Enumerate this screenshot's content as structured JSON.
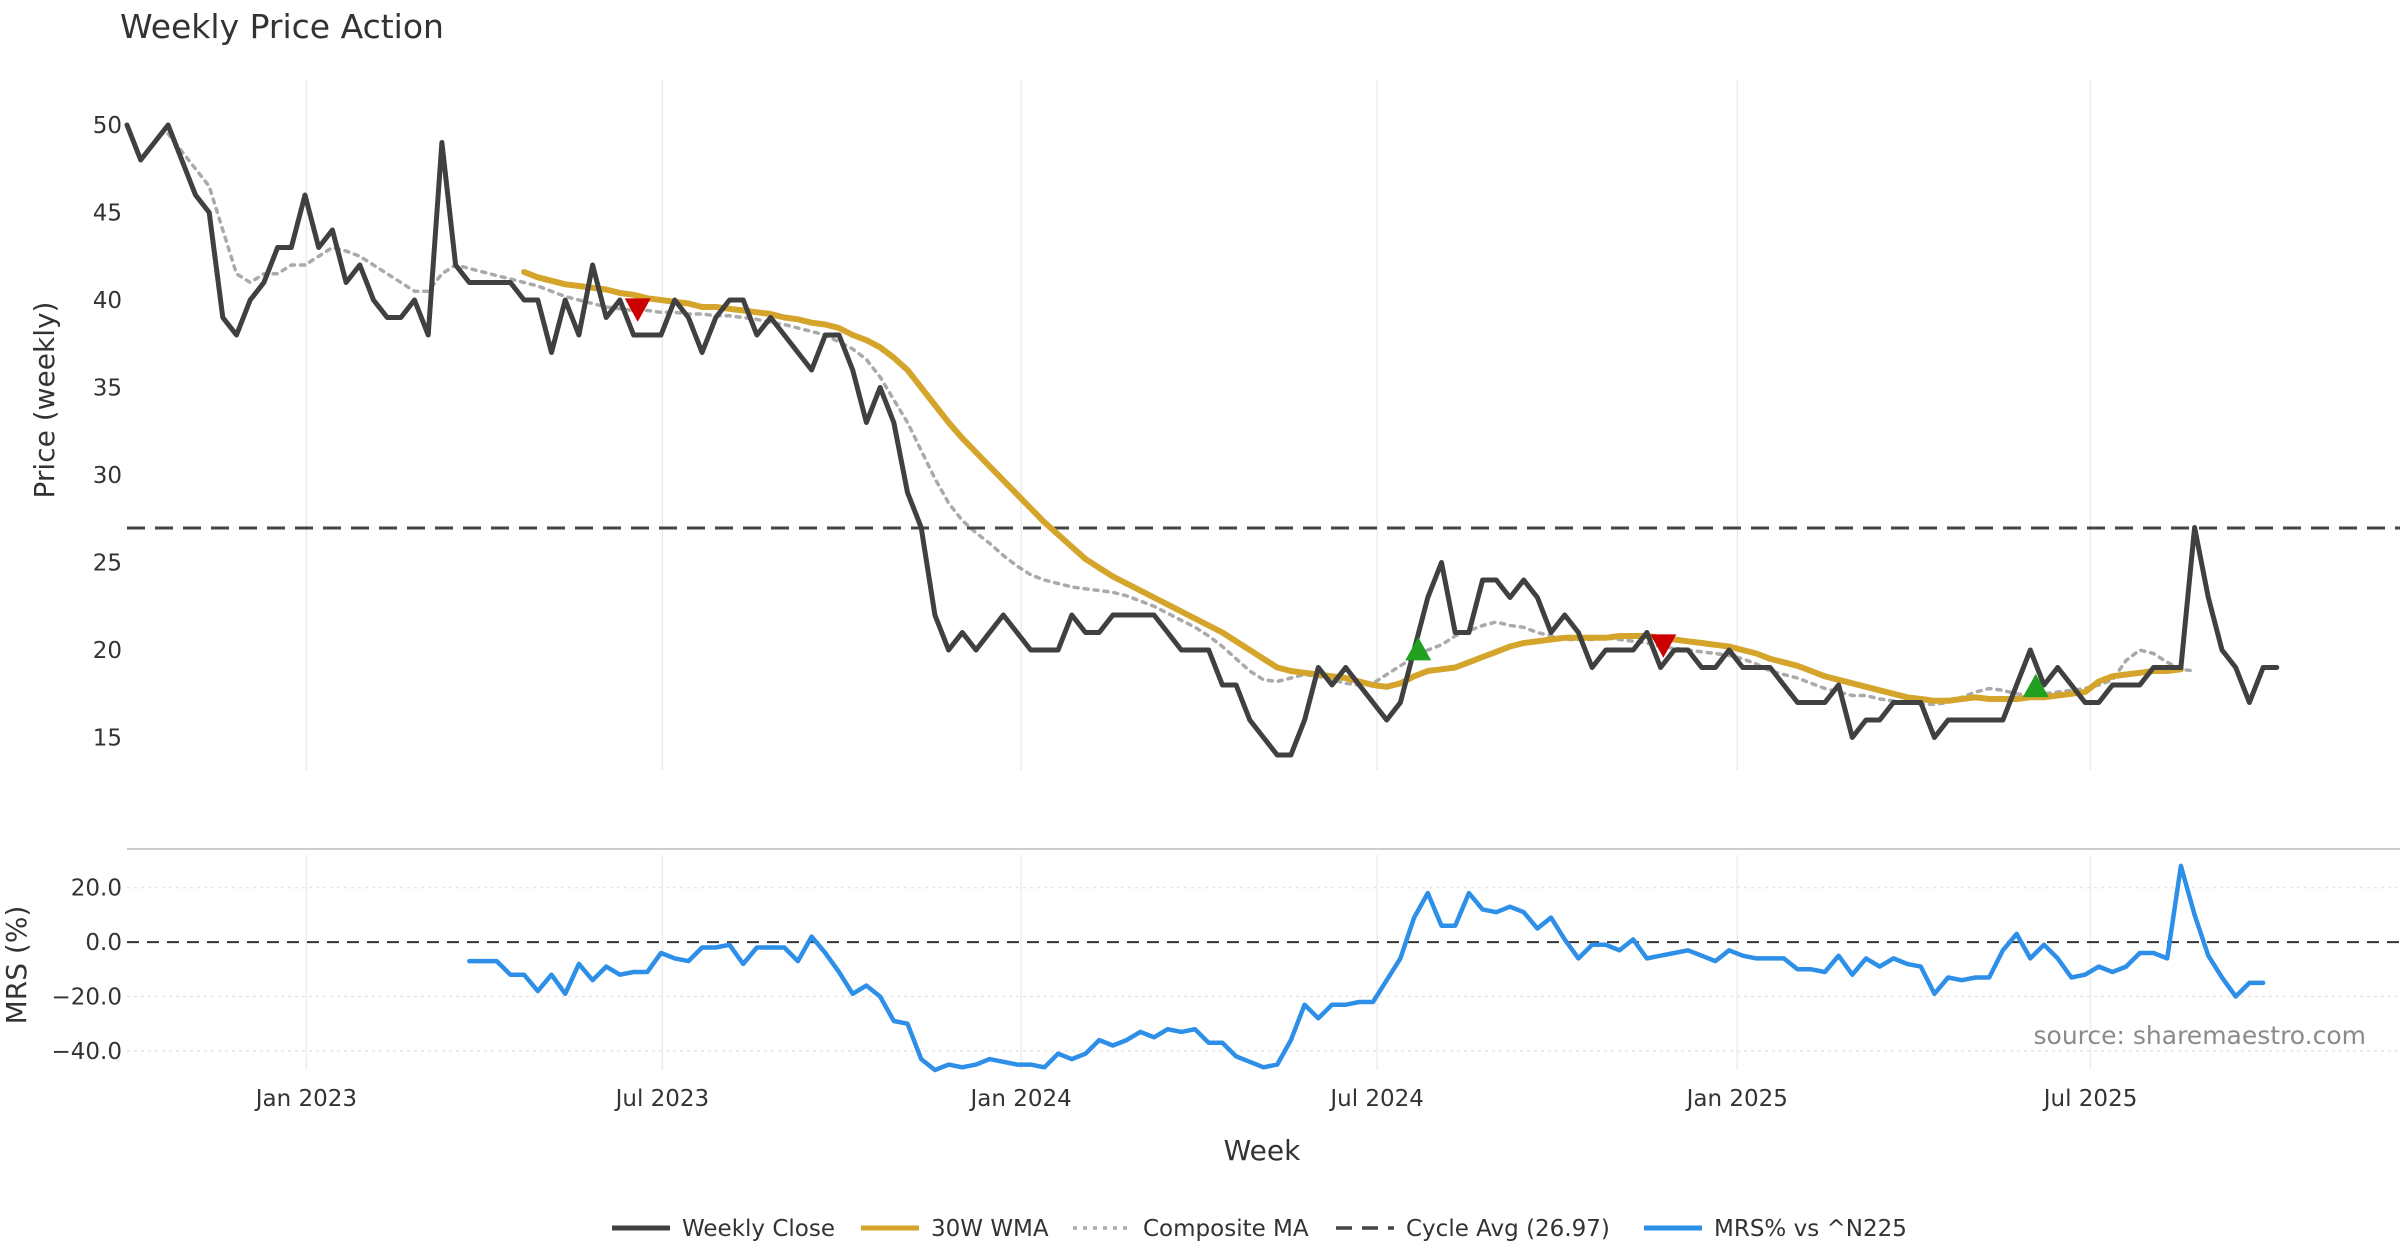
{
  "chart_data": [
    {
      "type": "line",
      "title": "Weekly Price Action",
      "ylabel": "Price (weekly)",
      "xlabel": "",
      "x_unit": "weeks since 2022-09-30",
      "xlim": [
        0,
        166
      ],
      "ylim": [
        12.0,
        52.0
      ],
      "yticks": [
        15,
        20,
        25,
        30,
        35,
        40,
        45,
        50
      ],
      "xticks": [
        {
          "x": 13.1,
          "label": "Jan 2023"
        },
        {
          "x": 39.1,
          "label": "Jul 2023"
        },
        {
          "x": 65.3,
          "label": "Jan 2024"
        },
        {
          "x": 91.3,
          "label": "Jul 2024"
        },
        {
          "x": 117.6,
          "label": "Jan 2025"
        },
        {
          "x": 143.4,
          "label": "Jul 2025"
        }
      ],
      "series": [
        {
          "name": "Weekly Close",
          "color": "#404040",
          "style": "solid",
          "start": 0,
          "values": [
            50,
            48,
            49,
            50,
            48,
            46,
            45,
            39,
            38,
            40,
            41,
            43,
            43,
            46,
            43,
            44,
            41,
            42,
            40,
            39,
            39,
            40,
            38,
            49,
            42,
            41,
            41,
            41,
            41,
            40,
            40,
            37,
            40,
            38,
            42,
            39,
            40,
            38,
            38,
            38,
            40,
            39,
            37,
            39,
            40,
            40,
            38,
            39,
            38,
            37,
            36,
            38,
            38,
            36,
            33,
            35,
            33,
            29,
            27,
            22,
            20,
            21,
            20,
            21,
            22,
            21,
            20,
            20,
            20,
            22,
            21,
            21,
            22,
            22,
            22,
            22,
            21,
            20,
            20,
            20,
            18,
            18,
            16,
            15,
            14,
            14,
            16,
            19,
            18,
            19,
            18,
            17,
            16,
            17,
            20,
            23,
            25,
            21,
            21,
            24,
            24,
            23,
            24,
            23,
            21,
            22,
            21,
            19,
            20,
            20,
            20,
            21,
            19,
            20,
            20,
            19,
            19,
            20,
            19,
            19,
            19,
            18,
            17,
            17,
            17,
            18,
            15,
            16,
            16,
            17,
            17,
            17,
            15,
            16,
            16,
            16,
            16,
            16,
            18,
            20,
            18,
            19,
            18,
            17,
            17,
            18,
            18,
            18,
            19,
            19,
            19,
            27,
            23,
            20,
            19,
            17,
            19,
            19
          ]
        },
        {
          "name": "30W WMA",
          "color": "#D4A42B",
          "style": "solid",
          "start": 29,
          "values": [
            41.6,
            41.3,
            41.1,
            40.9,
            40.8,
            40.7,
            40.6,
            40.4,
            40.3,
            40.1,
            40.0,
            39.9,
            39.8,
            39.6,
            39.6,
            39.5,
            39.4,
            39.3,
            39.2,
            39.0,
            38.9,
            38.7,
            38.6,
            38.4,
            38.0,
            37.7,
            37.3,
            36.7,
            36.0,
            35.0,
            34.0,
            33.0,
            32.1,
            31.3,
            30.5,
            29.7,
            28.9,
            28.1,
            27.3,
            26.6,
            25.9,
            25.2,
            24.7,
            24.2,
            23.8,
            23.4,
            23.0,
            22.6,
            22.2,
            21.8,
            21.4,
            21.0,
            20.5,
            20.0,
            19.5,
            19.0,
            18.8,
            18.7,
            18.6,
            18.5,
            18.4,
            18.2,
            18.0,
            17.9,
            18.1,
            18.5,
            18.8,
            18.9,
            19.0,
            19.3,
            19.6,
            19.9,
            20.2,
            20.4,
            20.5,
            20.6,
            20.7,
            20.7,
            20.7,
            20.7,
            20.8,
            20.8,
            20.8,
            20.7,
            20.6,
            20.5,
            20.4,
            20.3,
            20.2,
            20.0,
            19.8,
            19.5,
            19.3,
            19.1,
            18.8,
            18.5,
            18.3,
            18.1,
            17.9,
            17.7,
            17.5,
            17.3,
            17.2,
            17.1,
            17.1,
            17.2,
            17.3,
            17.2,
            17.2,
            17.2,
            17.3,
            17.3,
            17.4,
            17.5,
            17.6,
            18.2,
            18.5,
            18.6,
            18.7,
            18.8,
            18.8,
            18.9
          ]
        },
        {
          "name": "Composite MA",
          "color": "#AAAAAA",
          "style": "dotted",
          "start": 3,
          "values": [
            49.5,
            48.5,
            47.5,
            46.5,
            44.0,
            41.5,
            41.0,
            41.5,
            41.5,
            42.0,
            42.0,
            42.5,
            43.0,
            42.8,
            42.5,
            42.0,
            41.5,
            41.0,
            40.5,
            40.5,
            41.5,
            42.0,
            41.8,
            41.6,
            41.4,
            41.2,
            41.0,
            40.8,
            40.5,
            40.2,
            40.0,
            39.8,
            39.6,
            39.5,
            39.4,
            39.4,
            39.3,
            39.3,
            39.2,
            39.2,
            39.1,
            39.1,
            39.0,
            38.9,
            38.7,
            38.6,
            38.4,
            38.2,
            38.0,
            37.6,
            37.2,
            36.6,
            35.6,
            34.3,
            33.0,
            31.4,
            29.8,
            28.4,
            27.4,
            26.7,
            26.1,
            25.4,
            24.8,
            24.3,
            24.0,
            23.8,
            23.6,
            23.5,
            23.4,
            23.3,
            23.1,
            22.8,
            22.5,
            22.1,
            21.7,
            21.3,
            20.8,
            20.2,
            19.5,
            18.8,
            18.3,
            18.2,
            18.4,
            18.6,
            18.5,
            18.3,
            18.1,
            18.0,
            18.1,
            18.6,
            19.1,
            19.6,
            20.0,
            20.3,
            20.8,
            21.1,
            21.4,
            21.6,
            21.4,
            21.3,
            21.0,
            20.8,
            20.6,
            20.6,
            20.6,
            20.7,
            20.6,
            20.5,
            20.4,
            20.2,
            20.1,
            20.0,
            19.9,
            19.8,
            19.7,
            19.5,
            19.2,
            18.8,
            18.6,
            18.4,
            18.1,
            17.8,
            17.6,
            17.4,
            17.4,
            17.2,
            17.1,
            17.0,
            16.9,
            16.9,
            17.0,
            17.3,
            17.6,
            17.8,
            17.7,
            17.5,
            17.4,
            17.5,
            17.6,
            17.7,
            17.8,
            18.0,
            18.3,
            19.4,
            20.0,
            19.8,
            19.3,
            18.9,
            18.8
          ]
        },
        {
          "name": "Cycle Avg (26.97)",
          "color": "#444444",
          "style": "dashed",
          "y": 26.97
        }
      ],
      "markers": [
        {
          "type": "sell",
          "x": 37.3,
          "y": 39.5,
          "color": "#CC0000"
        },
        {
          "type": "buy",
          "x": 94.3,
          "y": 20.0,
          "color": "#22A022"
        },
        {
          "type": "sell",
          "x": 112.2,
          "y": 20.3,
          "color": "#CC0000"
        },
        {
          "type": "buy",
          "x": 139.4,
          "y": 17.9,
          "color": "#22A022"
        }
      ]
    },
    {
      "type": "line",
      "title": "",
      "ylabel": "MRS (%)",
      "xlabel": "Week",
      "xlim": [
        0,
        166
      ],
      "ylim": [
        -47,
        32
      ],
      "yticks": [
        20.0,
        0.0,
        -20.0,
        -40.0
      ],
      "ytick_labels": [
        "20.0",
        "0.0",
        "−20.0",
        "−40.0"
      ],
      "series": [
        {
          "name": "MRS% vs ^N225",
          "color": "#2E8FE8",
          "style": "solid",
          "start": 25,
          "values": [
            -7.0,
            -7.0,
            -7.0,
            -12.0,
            -12.0,
            -18.0,
            -12.0,
            -19.0,
            -8.0,
            -14.0,
            -9.0,
            -12.0,
            -11.0,
            -11.0,
            -4.0,
            -6.0,
            -7.0,
            -2.0,
            -2.0,
            -1.0,
            -8.0,
            -2.0,
            -2.0,
            -2.0,
            -7.0,
            2.0,
            -4.0,
            -11.0,
            -19.0,
            -16.0,
            -20.0,
            -29.0,
            -30.0,
            -43.0,
            -47.0,
            -45.0,
            -46.0,
            -45.0,
            -43.0,
            -44.0,
            -45.0,
            -45.0,
            -46.0,
            -41.0,
            -43.0,
            -41.0,
            -36.0,
            -38.0,
            -36.0,
            -33.0,
            -35.0,
            -32.0,
            -33.0,
            -32.0,
            -37.0,
            -37.0,
            -42.0,
            -44.0,
            -46.0,
            -45.0,
            -36.0,
            -23.0,
            -28.0,
            -23.0,
            -23.0,
            -22.0,
            -22.0,
            -14.0,
            -6.0,
            9.0,
            18.0,
            6.0,
            6.0,
            18.0,
            12.0,
            11.0,
            13.0,
            11.0,
            5.0,
            9.0,
            1.0,
            -6.0,
            -1.0,
            -1.0,
            -3.0,
            1.0,
            -6.0,
            -5.0,
            -4.0,
            -3.0,
            -5.0,
            -7.0,
            -3.0,
            -5.0,
            -6.0,
            -6.0,
            -6.0,
            -10.0,
            -10.0,
            -11.0,
            -5.0,
            -12.0,
            -6.0,
            -9.0,
            -6.0,
            -8.0,
            -9.0,
            -19.0,
            -13.0,
            -14.0,
            -13.0,
            -13.0,
            -3.0,
            3.0,
            -6.0,
            -1.0,
            -6.0,
            -13.0,
            -12.0,
            -9.0,
            -11.0,
            -9.0,
            -4.0,
            -4.0,
            -6.0,
            28.0,
            10.0,
            -5.0,
            -13.0,
            -20.0,
            -15.0,
            -15.0
          ]
        },
        {
          "name": "zero",
          "color": "#333333",
          "style": "dashed",
          "y": 0
        }
      ]
    }
  ],
  "legend": [
    {
      "label": "Weekly Close",
      "color": "#404040",
      "style": "solid"
    },
    {
      "label": "30W WMA",
      "color": "#D4A42B",
      "style": "solid"
    },
    {
      "label": "Composite MA",
      "color": "#AAAAAA",
      "style": "dotted"
    },
    {
      "label": "Cycle Avg (26.97)",
      "color": "#444444",
      "style": "dashed"
    },
    {
      "label": "MRS% vs ^N225",
      "color": "#2E8FE8",
      "style": "solid"
    }
  ],
  "source": "source: sharemaestro.com"
}
